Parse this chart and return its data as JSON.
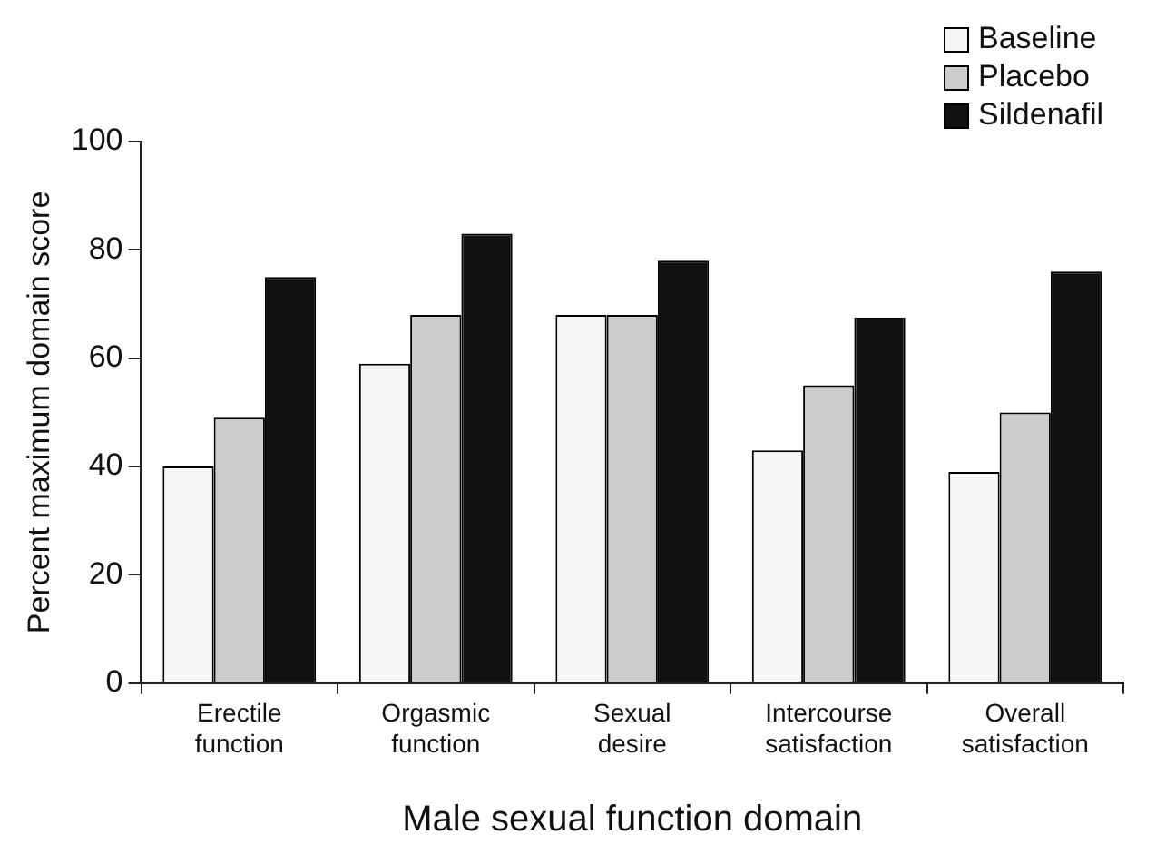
{
  "chart_data": {
    "type": "bar",
    "xlabel": "Male sexual function domain",
    "ylabel": "Percent maximum domain score",
    "categories": [
      "Erectile function",
      "Orgasmic function",
      "Sexual desire",
      "Intercourse satisfaction",
      "Overall satisfaction"
    ],
    "series": [
      {
        "name": "Baseline",
        "color": "#f7f7f7",
        "values": [
          40,
          59,
          68,
          43,
          39
        ]
      },
      {
        "name": "Placebo",
        "color": "#cccccc",
        "values": [
          49,
          68,
          68,
          55,
          50
        ]
      },
      {
        "name": "Sildenafil",
        "color": "#111111",
        "values": [
          75,
          83,
          78,
          67.5,
          76
        ]
      }
    ],
    "ylim": [
      0,
      100
    ],
    "yticks": [
      0,
      20,
      40,
      60,
      80,
      100
    ],
    "grid": false,
    "legend": "top right"
  }
}
